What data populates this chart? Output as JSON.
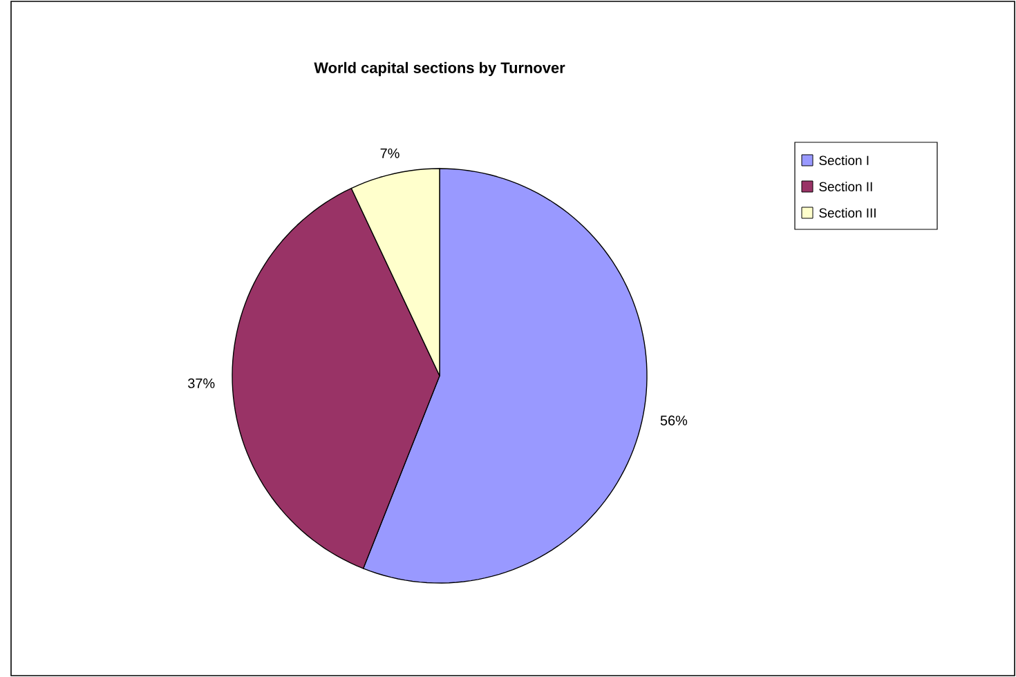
{
  "chart_data": {
    "type": "pie",
    "title": "World capital sections by Turnover",
    "categories": [
      "Section I",
      "Section II",
      "Section III"
    ],
    "values": [
      56,
      37,
      7
    ],
    "value_labels": [
      "56%",
      "37%",
      "7%"
    ],
    "colors": [
      "#9999ff",
      "#993366",
      "#ffffcc"
    ],
    "legend": "right"
  }
}
